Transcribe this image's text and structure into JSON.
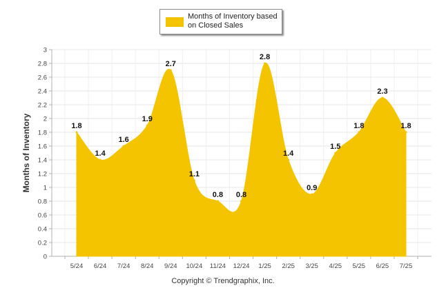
{
  "chart_data": {
    "type": "area",
    "categories": [
      "5/24",
      "6/24",
      "7/24",
      "8/24",
      "9/24",
      "10/24",
      "11/24",
      "12/24",
      "1/25",
      "2/25",
      "3/25",
      "4/25",
      "5/25",
      "6/25",
      "7/25"
    ],
    "series": [
      {
        "name": "Months of Inventory based on Closed Sales",
        "values": [
          1.8,
          1.4,
          1.6,
          1.9,
          2.7,
          1.1,
          0.8,
          0.8,
          2.8,
          1.4,
          0.9,
          1.5,
          1.8,
          2.3,
          1.8
        ],
        "color": "#F5C400"
      }
    ],
    "data_labels": [
      "1.8",
      "1.4",
      "1.6",
      "1.9",
      "2.7",
      "1.1",
      "0.8",
      "0.8",
      "2.8",
      "1.4",
      "0.9",
      "1.5",
      "1.8",
      "2.3",
      "1.8"
    ],
    "ylabel": "Months of Inventory",
    "xlabel": "",
    "ylim": [
      0,
      3
    ],
    "yticks": [
      "0",
      "0.2",
      "0.4",
      "0.6",
      "0.8",
      "1",
      "1.2",
      "1.4",
      "1.6",
      "1.8",
      "2",
      "2.2",
      "2.4",
      "2.6",
      "2.8",
      "3"
    ],
    "grid": true,
    "legend_position": "top"
  },
  "legend": {
    "label": "Months of Inventory based on Closed Sales",
    "swatch_color": "#F5C400"
  },
  "footer": {
    "copyright": "Copyright © Trendgraphix, Inc."
  }
}
